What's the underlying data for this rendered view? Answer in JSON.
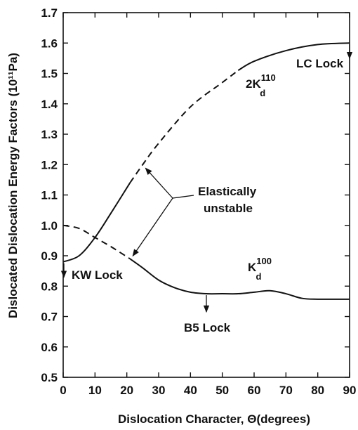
{
  "chart_data": {
    "type": "line",
    "title": "",
    "xlabel": "Dislocation Character, Θ(degrees)",
    "ylabel": "Dislocated Dislocation Energy Factors (10¹¹Pa)",
    "xlim": [
      0,
      90
    ],
    "ylim": [
      0.5,
      1.7
    ],
    "xticks": [
      "0",
      "10",
      "20",
      "30",
      "40",
      "50",
      "60",
      "70",
      "80",
      "90"
    ],
    "yticks": [
      "0.5",
      "0.6",
      "0.7",
      "0.8",
      "0.9",
      "1.0",
      "1.1",
      "1.2",
      "1.3",
      "1.4",
      "1.5",
      "1.6",
      "1.7"
    ],
    "grid": false,
    "series": [
      {
        "name": "2K_d^110",
        "label_main": "2K",
        "label_sub": "d",
        "label_sup": "110",
        "points": [
          [
            0,
            0.88
          ],
          [
            5,
            0.9
          ],
          [
            10,
            0.96
          ],
          [
            15,
            1.04
          ],
          [
            21,
            1.14
          ],
          [
            25,
            1.2
          ],
          [
            30,
            1.27
          ],
          [
            40,
            1.39
          ],
          [
            50,
            1.47
          ],
          [
            55,
            1.51
          ],
          [
            60,
            1.54
          ],
          [
            70,
            1.575
          ],
          [
            80,
            1.595
          ],
          [
            90,
            1.6
          ]
        ],
        "unstable_range": [
          21,
          55
        ]
      },
      {
        "name": "K_d^100",
        "label_main": "K",
        "label_sub": "d",
        "label_sup": "100",
        "points": [
          [
            0,
            1.0
          ],
          [
            5,
            0.99
          ],
          [
            10,
            0.96
          ],
          [
            15,
            0.93
          ],
          [
            21,
            0.89
          ],
          [
            25,
            0.86
          ],
          [
            30,
            0.82
          ],
          [
            35,
            0.795
          ],
          [
            40,
            0.78
          ],
          [
            45,
            0.775
          ],
          [
            50,
            0.775
          ],
          [
            55,
            0.775
          ],
          [
            60,
            0.78
          ],
          [
            65,
            0.785
          ],
          [
            70,
            0.775
          ],
          [
            75,
            0.76
          ],
          [
            80,
            0.757
          ],
          [
            90,
            0.757
          ]
        ],
        "unstable_range": [
          0,
          21
        ]
      }
    ],
    "annotations": [
      {
        "text": "LC Lock"
      },
      {
        "text": "KW Lock"
      },
      {
        "text": "B5 Lock"
      },
      {
        "text": "Elastically"
      },
      {
        "text": "unstable"
      }
    ]
  }
}
